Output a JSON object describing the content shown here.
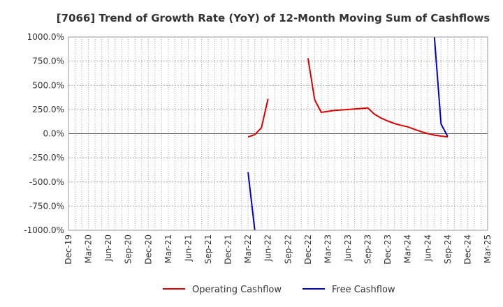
{
  "chart_data": {
    "type": "line",
    "title": "[7066]  Trend of Growth Rate (YoY) of 12-Month Moving Sum of Cashflows",
    "xlabel": "",
    "ylabel": "",
    "ylim": [
      -1000,
      1000
    ],
    "y_ticks": [
      "1000.0%",
      "750.0%",
      "500.0%",
      "250.0%",
      "0.0%",
      "-250.0%",
      "-500.0%",
      "-750.0%",
      "-1000.0%"
    ],
    "x_ticks": [
      "Dec-19",
      "Mar-20",
      "Jun-20",
      "Sep-20",
      "Dec-20",
      "Mar-21",
      "Jun-21",
      "Sep-21",
      "Dec-21",
      "Mar-22",
      "Jun-22",
      "Sep-22",
      "Dec-22",
      "Mar-23",
      "Jun-23",
      "Sep-23",
      "Dec-23",
      "Mar-24",
      "Jun-24",
      "Sep-24",
      "Dec-24",
      "Mar-25"
    ],
    "grid": true,
    "legend_position": "bottom",
    "series": [
      {
        "name": "Operating Cashflow",
        "color": "#dd0000",
        "segments": [
          [
            {
              "x": "2022-03",
              "y": -35
            },
            {
              "x": "2022-04",
              "y": -10
            },
            {
              "x": "2022-05",
              "y": 60
            },
            {
              "x": "2022-06",
              "y": 360
            }
          ],
          [
            {
              "x": "2022-12",
              "y": 780
            },
            {
              "x": "2023-01",
              "y": 350
            },
            {
              "x": "2023-02",
              "y": 220
            },
            {
              "x": "2023-03",
              "y": 230
            },
            {
              "x": "2023-04",
              "y": 240
            },
            {
              "x": "2023-05",
              "y": 245
            },
            {
              "x": "2023-06",
              "y": 250
            },
            {
              "x": "2023-07",
              "y": 255
            },
            {
              "x": "2023-08",
              "y": 260
            },
            {
              "x": "2023-09",
              "y": 265
            },
            {
              "x": "2023-10",
              "y": 200
            },
            {
              "x": "2023-11",
              "y": 160
            },
            {
              "x": "2023-12",
              "y": 130
            },
            {
              "x": "2024-01",
              "y": 105
            },
            {
              "x": "2024-02",
              "y": 85
            },
            {
              "x": "2024-03",
              "y": 70
            },
            {
              "x": "2024-04",
              "y": 45
            },
            {
              "x": "2024-05",
              "y": 20
            },
            {
              "x": "2024-06",
              "y": 0
            },
            {
              "x": "2024-07",
              "y": -15
            },
            {
              "x": "2024-08",
              "y": -25
            },
            {
              "x": "2024-09",
              "y": -35
            }
          ]
        ]
      },
      {
        "name": "Free Cashflow",
        "color": "#0000cc",
        "segments": [
          [
            {
              "x": "2022-03",
              "y": -400
            },
            {
              "x": "2022-04",
              "y": -1000
            }
          ],
          [
            {
              "x": "2024-07",
              "y": 1000
            },
            {
              "x": "2024-08",
              "y": 100
            },
            {
              "x": "2024-09",
              "y": -30
            }
          ]
        ]
      }
    ]
  }
}
